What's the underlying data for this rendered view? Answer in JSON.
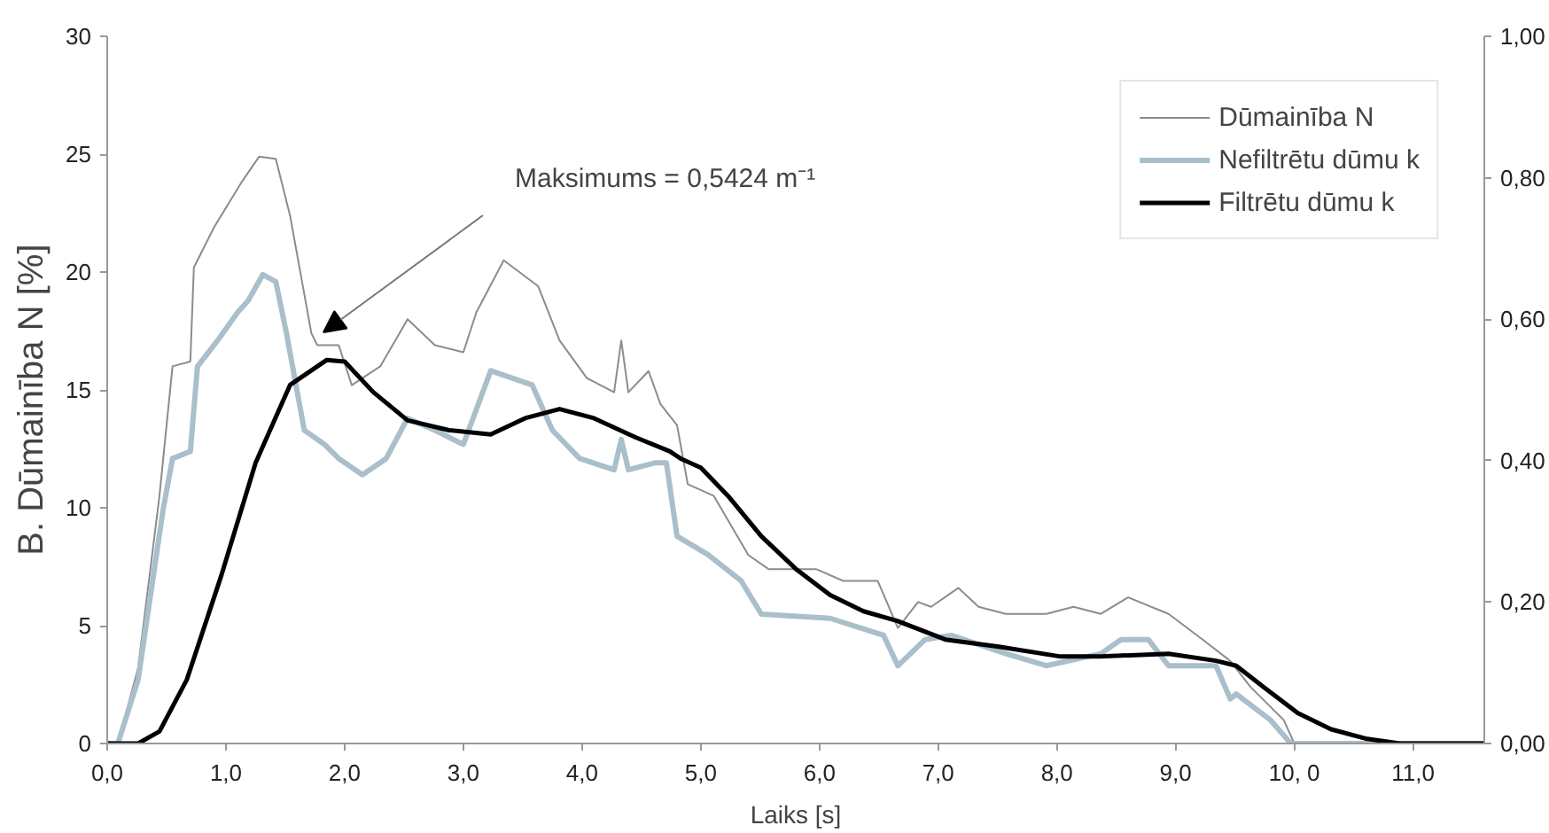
{
  "chart_data": {
    "type": "line",
    "xlabel": "Laiks [s]",
    "ylabel": "B.   Dūmainība N [%]",
    "xlim": [
      0,
      11.6
    ],
    "ylim": [
      0,
      30
    ],
    "y2lim": [
      0,
      1
    ],
    "xticks": [
      {
        "value": 0,
        "label": "0,0"
      },
      {
        "value": 1,
        "label": "1,0"
      },
      {
        "value": 2,
        "label": "2,0"
      },
      {
        "value": 3,
        "label": "3,0"
      },
      {
        "value": 4,
        "label": "4,0"
      },
      {
        "value": 5,
        "label": "5,0"
      },
      {
        "value": 6,
        "label": "6,0"
      },
      {
        "value": 7,
        "label": "7,0"
      },
      {
        "value": 8,
        "label": "8,0"
      },
      {
        "value": 9,
        "label": "9,0"
      },
      {
        "value": 10,
        "label": "10, 0"
      },
      {
        "value": 11,
        "label": "11,0"
      }
    ],
    "yticks": [
      0,
      5,
      10,
      15,
      20,
      25,
      30
    ],
    "y2ticks": [
      {
        "value": 0,
        "label": "0,00"
      },
      {
        "value": 0.2,
        "label": "0,20"
      },
      {
        "value": 0.4,
        "label": "0,40"
      },
      {
        "value": 0.6,
        "label": "0,60"
      },
      {
        "value": 0.8,
        "label": "0,80"
      },
      {
        "value": 1,
        "label": "1,00"
      }
    ],
    "grid": false,
    "legend": "top right",
    "annotations": [
      "Maksimums  = 0,5424 m⁻¹"
    ],
    "series": [
      {
        "name": "Dūmainība N",
        "color": "#8c8c8c",
        "x": [
          0,
          0.09,
          0.26,
          0.44,
          0.55,
          0.7,
          0.73,
          0.9,
          1.13,
          1.28,
          1.42,
          1.54,
          1.72,
          1.77,
          1.95,
          2.06,
          2.3,
          2.53,
          2.76,
          3.0,
          3.11,
          3.34,
          3.63,
          3.81,
          4.04,
          4.27,
          4.33,
          4.39,
          4.56,
          4.66,
          4.8,
          4.89,
          5.11,
          5.4,
          5.57,
          5.97,
          6.2,
          6.49,
          6.66,
          6.83,
          6.94,
          7.17,
          7.34,
          7.57,
          7.91,
          8.14,
          8.37,
          8.6,
          8.94,
          9.23,
          9.46,
          9.63,
          9.91,
          10.0,
          11.6
        ],
        "values": [
          0,
          0,
          3.2,
          10.5,
          16,
          16.2,
          20.2,
          21.9,
          23.8,
          24.9,
          24.8,
          22.4,
          17.4,
          16.9,
          16.9,
          15.2,
          16,
          18,
          16.9,
          16.6,
          18.3,
          20.5,
          19.4,
          17.1,
          15.5,
          14.9,
          17.1,
          14.9,
          15.8,
          14.4,
          13.5,
          11,
          10.5,
          8,
          7.4,
          7.4,
          6.9,
          6.9,
          4.9,
          6,
          5.8,
          6.6,
          5.8,
          5.5,
          5.5,
          5.8,
          5.5,
          6.2,
          5.5,
          4.4,
          3.5,
          2.4,
          1.0,
          0,
          0
        ]
      },
      {
        "name": "Nefiltrētu dūmu k",
        "color": "#a9bfca",
        "axis": "y2",
        "x": [
          0,
          0.09,
          0.26,
          0.47,
          0.55,
          0.7,
          0.76,
          0.93,
          1.1,
          1.19,
          1.31,
          1.42,
          1.51,
          1.66,
          1.83,
          1.95,
          2.15,
          2.35,
          2.53,
          2.76,
          3.0,
          3.23,
          3.58,
          3.75,
          3.98,
          4.27,
          4.33,
          4.39,
          4.62,
          4.71,
          4.8,
          5.06,
          5.34,
          5.51,
          6.09,
          6.54,
          6.66,
          6.89,
          7.11,
          7.57,
          7.91,
          8.37,
          8.54,
          8.77,
          8.94,
          9.34,
          9.46,
          9.51,
          9.8,
          9.97,
          11.6
        ],
        "values": [
          0,
          0,
          0.09,
          0.33,
          0.403,
          0.413,
          0.533,
          0.57,
          0.61,
          0.627,
          0.663,
          0.653,
          0.58,
          0.443,
          0.423,
          0.403,
          0.38,
          0.403,
          0.46,
          0.443,
          0.423,
          0.527,
          0.507,
          0.443,
          0.403,
          0.387,
          0.43,
          0.387,
          0.397,
          0.397,
          0.293,
          0.267,
          0.23,
          0.183,
          0.177,
          0.153,
          0.11,
          0.147,
          0.153,
          0.127,
          0.11,
          0.127,
          0.147,
          0.147,
          0.11,
          0.11,
          0.063,
          0.07,
          0.033,
          0,
          0
        ]
      },
      {
        "name": "Filtrētu dūmu k",
        "color": "#000000",
        "axis": "y2",
        "x": [
          0,
          0.26,
          0.44,
          0.67,
          0.96,
          1.25,
          1.54,
          1.85,
          2.0,
          2.24,
          2.53,
          2.88,
          3.23,
          3.52,
          3.81,
          4.1,
          4.45,
          4.74,
          4.83,
          5.0,
          5.23,
          5.51,
          5.8,
          6.09,
          6.37,
          6.66,
          7.06,
          7.51,
          8.03,
          8.37,
          8.94,
          9.34,
          9.51,
          9.74,
          10.03,
          10.31,
          10.6,
          10.89,
          11.6
        ],
        "values": [
          0,
          0,
          0.017,
          0.09,
          0.237,
          0.397,
          0.507,
          0.5424,
          0.54,
          0.497,
          0.457,
          0.443,
          0.437,
          0.46,
          0.473,
          0.46,
          0.433,
          0.413,
          0.403,
          0.39,
          0.35,
          0.293,
          0.247,
          0.21,
          0.187,
          0.173,
          0.147,
          0.137,
          0.123,
          0.123,
          0.127,
          0.117,
          0.11,
          0.08,
          0.043,
          0.02,
          0.007,
          0,
          0
        ]
      }
    ]
  }
}
